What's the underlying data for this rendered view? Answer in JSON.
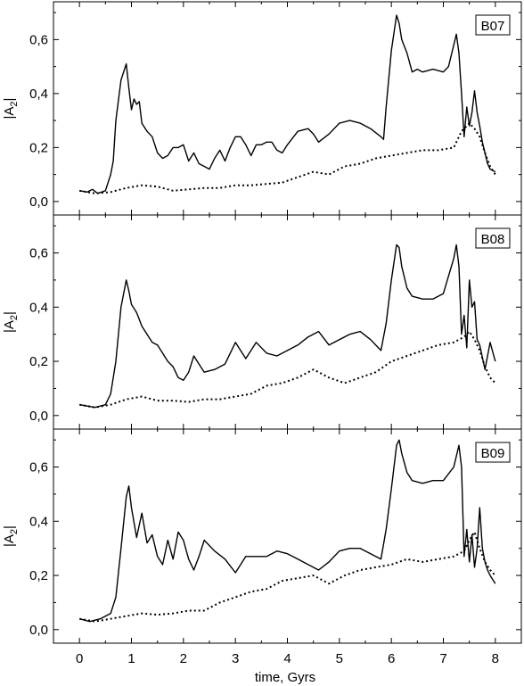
{
  "chart_data": {
    "type": "line",
    "xlabel": "time, Gyrs",
    "ylabel_main": "|A",
    "ylabel_sub": "2",
    "ylabel_close": "|",
    "xlim": [
      -0.5,
      8.5
    ],
    "ylim": [
      -0.05,
      0.74
    ],
    "xticks": [
      0,
      1,
      2,
      3,
      4,
      5,
      6,
      7,
      8
    ],
    "xtick_labels": [
      "0",
      "1",
      "2",
      "3",
      "4",
      "5",
      "6",
      "7",
      "8"
    ],
    "yticks": [
      0.0,
      0.2,
      0.4,
      0.6
    ],
    "ytick_labels": [
      "0,0",
      "0,2",
      "0,4",
      "0,6"
    ],
    "panels": [
      {
        "tag": "B07",
        "series": [
          {
            "style": "solid",
            "x": [
              0.0,
              0.15,
              0.25,
              0.35,
              0.5,
              0.6,
              0.65,
              0.7,
              0.8,
              0.9,
              0.95,
              1.0,
              1.05,
              1.1,
              1.15,
              1.2,
              1.3,
              1.4,
              1.5,
              1.6,
              1.7,
              1.8,
              1.9,
              2.0,
              2.1,
              2.2,
              2.3,
              2.4,
              2.5,
              2.6,
              2.7,
              2.8,
              2.9,
              3.0,
              3.1,
              3.2,
              3.3,
              3.4,
              3.5,
              3.6,
              3.7,
              3.8,
              3.9,
              4.0,
              4.2,
              4.4,
              4.5,
              4.6,
              4.8,
              5.0,
              5.2,
              5.4,
              5.6,
              5.8,
              5.85,
              5.9,
              6.0,
              6.1,
              6.15,
              6.2,
              6.3,
              6.4,
              6.5,
              6.6,
              6.8,
              7.0,
              7.1,
              7.2,
              7.25,
              7.3,
              7.35,
              7.4,
              7.45,
              7.5,
              7.55,
              7.6,
              7.65,
              7.7,
              7.75,
              7.8,
              7.85,
              7.9,
              8.0
            ],
            "y": [
              0.04,
              0.035,
              0.045,
              0.03,
              0.04,
              0.1,
              0.15,
              0.3,
              0.45,
              0.51,
              0.42,
              0.34,
              0.38,
              0.36,
              0.37,
              0.29,
              0.26,
              0.24,
              0.18,
              0.16,
              0.17,
              0.2,
              0.2,
              0.21,
              0.15,
              0.18,
              0.14,
              0.13,
              0.12,
              0.16,
              0.19,
              0.15,
              0.2,
              0.24,
              0.24,
              0.21,
              0.17,
              0.21,
              0.21,
              0.22,
              0.22,
              0.19,
              0.18,
              0.21,
              0.26,
              0.27,
              0.25,
              0.22,
              0.25,
              0.29,
              0.3,
              0.29,
              0.27,
              0.24,
              0.23,
              0.35,
              0.56,
              0.69,
              0.66,
              0.6,
              0.55,
              0.48,
              0.49,
              0.48,
              0.49,
              0.48,
              0.5,
              0.58,
              0.62,
              0.55,
              0.4,
              0.24,
              0.35,
              0.28,
              0.33,
              0.41,
              0.33,
              0.28,
              0.22,
              0.18,
              0.14,
              0.12,
              0.11
            ]
          },
          {
            "style": "dotted",
            "x": [
              0.0,
              0.3,
              0.6,
              0.9,
              1.2,
              1.5,
              1.8,
              2.1,
              2.4,
              2.7,
              3.0,
              3.3,
              3.6,
              3.9,
              4.2,
              4.5,
              4.8,
              5.1,
              5.4,
              5.7,
              6.0,
              6.3,
              6.6,
              6.9,
              7.2,
              7.35,
              7.5,
              7.6,
              7.7,
              7.8,
              7.9,
              8.0
            ],
            "y": [
              0.04,
              0.03,
              0.035,
              0.05,
              0.06,
              0.055,
              0.04,
              0.045,
              0.05,
              0.05,
              0.06,
              0.06,
              0.065,
              0.07,
              0.09,
              0.11,
              0.1,
              0.13,
              0.14,
              0.16,
              0.17,
              0.18,
              0.19,
              0.19,
              0.2,
              0.26,
              0.29,
              0.27,
              0.24,
              0.18,
              0.13,
              0.1
            ]
          }
        ]
      },
      {
        "tag": "B08",
        "series": [
          {
            "style": "solid",
            "x": [
              0.0,
              0.15,
              0.3,
              0.5,
              0.6,
              0.7,
              0.8,
              0.9,
              0.95,
              1.0,
              1.1,
              1.2,
              1.3,
              1.4,
              1.5,
              1.6,
              1.7,
              1.8,
              1.9,
              2.0,
              2.1,
              2.2,
              2.3,
              2.4,
              2.6,
              2.8,
              3.0,
              3.2,
              3.4,
              3.6,
              3.8,
              4.0,
              4.2,
              4.4,
              4.6,
              4.8,
              5.0,
              5.2,
              5.4,
              5.6,
              5.8,
              5.9,
              6.0,
              6.1,
              6.15,
              6.2,
              6.3,
              6.4,
              6.6,
              6.8,
              7.0,
              7.2,
              7.25,
              7.3,
              7.35,
              7.4,
              7.45,
              7.5,
              7.55,
              7.6,
              7.65,
              7.7,
              7.8,
              7.9,
              8.0
            ],
            "y": [
              0.04,
              0.035,
              0.03,
              0.04,
              0.08,
              0.2,
              0.4,
              0.5,
              0.46,
              0.41,
              0.38,
              0.33,
              0.3,
              0.27,
              0.26,
              0.23,
              0.2,
              0.18,
              0.14,
              0.13,
              0.16,
              0.22,
              0.19,
              0.16,
              0.17,
              0.19,
              0.27,
              0.21,
              0.27,
              0.23,
              0.22,
              0.24,
              0.26,
              0.29,
              0.31,
              0.26,
              0.28,
              0.3,
              0.31,
              0.28,
              0.24,
              0.34,
              0.5,
              0.63,
              0.62,
              0.55,
              0.47,
              0.44,
              0.43,
              0.43,
              0.45,
              0.58,
              0.63,
              0.55,
              0.3,
              0.37,
              0.25,
              0.5,
              0.4,
              0.42,
              0.28,
              0.26,
              0.17,
              0.27,
              0.2
            ]
          },
          {
            "style": "dotted",
            "x": [
              0.0,
              0.3,
              0.6,
              0.9,
              1.2,
              1.5,
              1.8,
              2.1,
              2.4,
              2.7,
              3.0,
              3.3,
              3.6,
              3.9,
              4.2,
              4.5,
              4.8,
              5.1,
              5.4,
              5.7,
              6.0,
              6.3,
              6.6,
              6.9,
              7.2,
              7.4,
              7.5,
              7.6,
              7.7,
              7.8,
              7.9,
              8.0
            ],
            "y": [
              0.04,
              0.03,
              0.04,
              0.06,
              0.07,
              0.055,
              0.055,
              0.05,
              0.06,
              0.06,
              0.07,
              0.08,
              0.11,
              0.12,
              0.14,
              0.17,
              0.14,
              0.12,
              0.14,
              0.16,
              0.2,
              0.22,
              0.24,
              0.26,
              0.27,
              0.29,
              0.31,
              0.28,
              0.24,
              0.18,
              0.14,
              0.12
            ]
          }
        ]
      },
      {
        "tag": "B09",
        "series": [
          {
            "style": "solid",
            "x": [
              0.0,
              0.2,
              0.4,
              0.6,
              0.7,
              0.8,
              0.9,
              0.95,
              1.0,
              1.1,
              1.2,
              1.3,
              1.4,
              1.5,
              1.6,
              1.7,
              1.8,
              1.9,
              2.0,
              2.1,
              2.2,
              2.3,
              2.4,
              2.6,
              2.8,
              3.0,
              3.2,
              3.4,
              3.6,
              3.8,
              4.0,
              4.2,
              4.4,
              4.6,
              4.8,
              5.0,
              5.2,
              5.4,
              5.6,
              5.8,
              5.9,
              6.0,
              6.1,
              6.15,
              6.2,
              6.3,
              6.4,
              6.6,
              6.8,
              7.0,
              7.2,
              7.3,
              7.35,
              7.4,
              7.45,
              7.5,
              7.55,
              7.6,
              7.65,
              7.7,
              7.75,
              7.8,
              7.85,
              7.9,
              8.0
            ],
            "y": [
              0.04,
              0.03,
              0.04,
              0.06,
              0.12,
              0.3,
              0.49,
              0.53,
              0.45,
              0.34,
              0.43,
              0.32,
              0.35,
              0.27,
              0.24,
              0.33,
              0.26,
              0.36,
              0.33,
              0.26,
              0.22,
              0.27,
              0.33,
              0.29,
              0.26,
              0.21,
              0.27,
              0.27,
              0.27,
              0.29,
              0.28,
              0.26,
              0.24,
              0.22,
              0.25,
              0.29,
              0.3,
              0.3,
              0.28,
              0.26,
              0.37,
              0.52,
              0.68,
              0.7,
              0.65,
              0.58,
              0.55,
              0.54,
              0.55,
              0.55,
              0.6,
              0.68,
              0.6,
              0.27,
              0.37,
              0.25,
              0.35,
              0.23,
              0.3,
              0.45,
              0.3,
              0.25,
              0.22,
              0.2,
              0.17
            ]
          },
          {
            "style": "dotted",
            "x": [
              0.0,
              0.3,
              0.6,
              0.9,
              1.2,
              1.5,
              1.8,
              2.1,
              2.4,
              2.7,
              3.0,
              3.3,
              3.6,
              3.9,
              4.2,
              4.5,
              4.8,
              5.1,
              5.4,
              5.7,
              6.0,
              6.3,
              6.6,
              6.9,
              7.2,
              7.4,
              7.5,
              7.6,
              7.7,
              7.8,
              7.9,
              8.0
            ],
            "y": [
              0.04,
              0.03,
              0.04,
              0.05,
              0.06,
              0.055,
              0.06,
              0.07,
              0.07,
              0.1,
              0.12,
              0.14,
              0.15,
              0.18,
              0.19,
              0.2,
              0.17,
              0.2,
              0.22,
              0.23,
              0.24,
              0.26,
              0.25,
              0.26,
              0.27,
              0.29,
              0.33,
              0.36,
              0.3,
              0.25,
              0.22,
              0.2
            ]
          }
        ]
      }
    ]
  }
}
